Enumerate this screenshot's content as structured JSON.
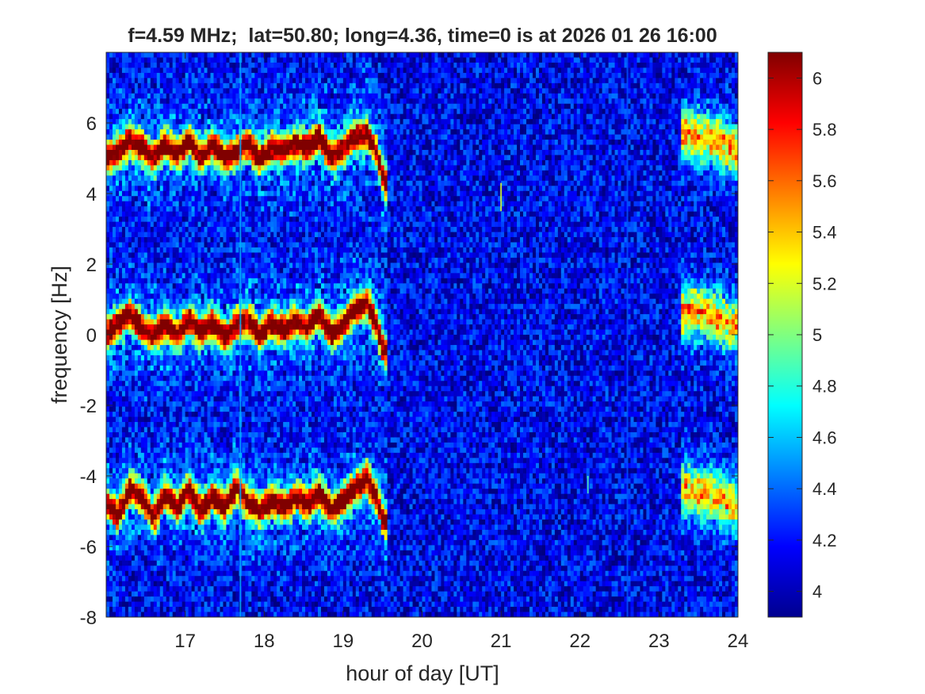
{
  "chart_data": {
    "type": "heatmap",
    "title": "f=4.59 MHz;  lat=50.80; long=4.36, time=0 is at 2026 01 26 16:00",
    "xlabel": "hour of day [UT]",
    "ylabel": "frequency [Hz]",
    "xlim": [
      16,
      24
    ],
    "ylim": [
      -8,
      8
    ],
    "x_ticks": [
      17,
      18,
      19,
      20,
      21,
      22,
      23,
      24
    ],
    "y_ticks": [
      -8,
      -6,
      -4,
      -2,
      0,
      2,
      4,
      6
    ],
    "colorbar": {
      "colormap": "jet",
      "limits": [
        3.9,
        6.1
      ],
      "ticks": [
        4,
        4.2,
        4.4,
        4.6,
        4.8,
        5,
        5.2,
        5.4,
        5.6,
        5.8,
        6
      ]
    },
    "grid": false,
    "background_level": 4.15,
    "traces": [
      {
        "name": "upper band",
        "x": [
          16.0,
          16.15,
          16.3,
          16.45,
          16.6,
          16.75,
          16.9,
          17.05,
          17.2,
          17.35,
          17.5,
          17.65,
          17.8,
          17.95,
          18.1,
          18.25,
          18.4,
          18.55,
          18.7,
          18.85,
          19.0,
          19.15,
          19.3,
          19.42,
          19.52
        ],
        "y": [
          5.0,
          5.2,
          5.5,
          5.3,
          5.0,
          5.4,
          5.1,
          5.5,
          5.0,
          5.4,
          5.0,
          5.2,
          5.4,
          5.0,
          5.3,
          5.2,
          5.4,
          5.3,
          5.6,
          5.0,
          5.3,
          5.6,
          5.7,
          5.2,
          4.3
        ]
      },
      {
        "name": "centre band",
        "x": [
          16.0,
          16.15,
          16.3,
          16.45,
          16.6,
          16.75,
          16.9,
          17.05,
          17.2,
          17.35,
          17.5,
          17.65,
          17.8,
          17.95,
          18.1,
          18.25,
          18.4,
          18.55,
          18.7,
          18.85,
          19.0,
          19.15,
          19.3,
          19.42,
          19.52
        ],
        "y": [
          0.0,
          0.3,
          0.6,
          0.2,
          0.0,
          0.3,
          0.0,
          0.4,
          0.1,
          0.3,
          -0.1,
          0.3,
          0.4,
          0.0,
          0.3,
          0.1,
          0.4,
          0.2,
          0.6,
          0.0,
          0.3,
          0.7,
          0.9,
          0.3,
          -0.5
        ]
      },
      {
        "name": "lower band",
        "x": [
          16.0,
          16.15,
          16.3,
          16.45,
          16.6,
          16.75,
          16.9,
          17.05,
          17.2,
          17.35,
          17.5,
          17.65,
          17.8,
          17.95,
          18.1,
          18.25,
          18.4,
          18.55,
          18.7,
          18.85,
          19.0,
          19.15,
          19.3,
          19.42,
          19.52
        ],
        "y": [
          -4.8,
          -5.1,
          -4.4,
          -4.6,
          -5.2,
          -4.5,
          -4.9,
          -4.4,
          -5.0,
          -4.6,
          -4.9,
          -4.3,
          -4.8,
          -5.0,
          -4.7,
          -4.9,
          -4.6,
          -4.8,
          -4.5,
          -5.0,
          -4.7,
          -4.4,
          -4.1,
          -4.6,
          -5.3
        ]
      },
      {
        "name": "late upper",
        "x": [
          23.3,
          23.5,
          23.7,
          23.9,
          24.0
        ],
        "y": [
          5.7,
          5.6,
          5.5,
          5.3,
          5.1
        ]
      },
      {
        "name": "late centre",
        "x": [
          23.3,
          23.5,
          23.7,
          23.9,
          24.0
        ],
        "y": [
          0.6,
          0.7,
          0.5,
          0.3,
          0.2
        ]
      },
      {
        "name": "late lower",
        "x": [
          23.3,
          23.5,
          23.7,
          23.9,
          24.0
        ],
        "y": [
          -4.4,
          -4.5,
          -4.6,
          -4.8,
          -4.9
        ]
      }
    ],
    "spikes": [
      {
        "x": 17.7,
        "y_range": [
          -8,
          8
        ],
        "level": 4.55
      },
      {
        "x": 21.0,
        "y_range": [
          3.5,
          4.3
        ],
        "level": 5.2
      },
      {
        "x": 22.1,
        "y_range": [
          -4.5,
          -4.0
        ],
        "level": 4.9
      },
      {
        "x": 22.6,
        "y_range": [
          -8,
          8
        ],
        "level": 4.35
      }
    ]
  }
}
